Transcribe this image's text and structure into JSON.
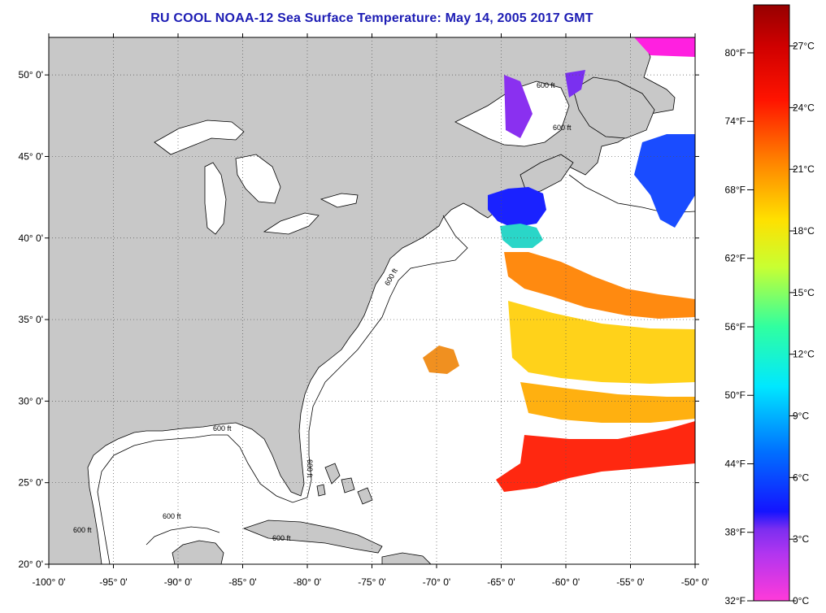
{
  "title": "RU COOL  NOAA-12  Sea Surface Temperature:  May 14, 2005 2017 GMT",
  "map": {
    "lon_range": [
      -100,
      -50
    ],
    "lat_range": [
      20,
      52.3
    ],
    "lat_ticks": [
      {
        "value": 50,
        "label": "50° 0'"
      },
      {
        "value": 45,
        "label": "45° 0'"
      },
      {
        "value": 40,
        "label": "40° 0'"
      },
      {
        "value": 35,
        "label": "35° 0'"
      },
      {
        "value": 30,
        "label": "30° 0'"
      },
      {
        "value": 25,
        "label": "25° 0'"
      },
      {
        "value": 20,
        "label": "20° 0'"
      }
    ],
    "lon_ticks": [
      {
        "value": -100,
        "label": "-100° 0'"
      },
      {
        "value": -95,
        "label": "-95° 0'"
      },
      {
        "value": -90,
        "label": "-90° 0'"
      },
      {
        "value": -85,
        "label": "-85° 0'"
      },
      {
        "value": -80,
        "label": "-80° 0'"
      },
      {
        "value": -75,
        "label": "-75° 0'"
      },
      {
        "value": -70,
        "label": "-70° 0'"
      },
      {
        "value": -65,
        "label": "-65° 0'"
      },
      {
        "value": -60,
        "label": "-60° 0'"
      },
      {
        "value": -55,
        "label": "-55° 0'"
      },
      {
        "value": -50,
        "label": "-50° 0'"
      }
    ],
    "depth_contour_labels": [
      "600 ft",
      "600 ft",
      "600 ft",
      "600 ft",
      "600 ft",
      "600 ft",
      "600 ft",
      "600 ft"
    ],
    "land_color": "#c8c8c8",
    "ocean_color": "#ffffff",
    "grid": true
  },
  "colorbar": {
    "fahrenheit_labels": [
      "80°F",
      "74°F",
      "68°F",
      "62°F",
      "56°F",
      "50°F",
      "44°F",
      "38°F",
      "32°F"
    ],
    "celsius_labels": [
      "27°C",
      "24°C",
      "21°C",
      "18°C",
      "15°C",
      "12°C",
      "9°C",
      "6°C",
      "3°C",
      "0°C"
    ],
    "range_celsius": [
      0,
      29
    ],
    "colors": [
      "#ff3ad9",
      "#7c2ef0",
      "#1414ff",
      "#0078ff",
      "#00e8ff",
      "#30ffa0",
      "#c8ff32",
      "#ffe000",
      "#ff8000",
      "#ff1400",
      "#960000"
    ]
  }
}
